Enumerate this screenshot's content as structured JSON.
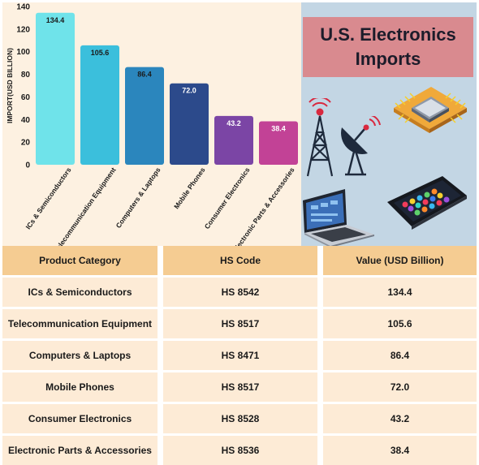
{
  "chart_data": {
    "type": "bar",
    "ylabel": "IMPORT(USD BILLION)",
    "ylim": [
      0,
      140
    ],
    "yticks": [
      0,
      20,
      40,
      60,
      80,
      100,
      120,
      140
    ],
    "categories": [
      "ICs & Semiconductors",
      "Telecommunication Equipment",
      "Computers & Laptops",
      "Mobile Phones",
      "Consumer Electronics",
      "Electronic Parts & Accessories"
    ],
    "values": [
      134.4,
      105.6,
      86.4,
      72.0,
      43.2,
      38.4
    ],
    "value_labels": [
      "134.4",
      "105.6",
      "86.4",
      "72.0",
      "43.2",
      "38.4"
    ],
    "bar_colors": [
      "#6fe3ea",
      "#3bbfdc",
      "#2b86bd",
      "#2c4a8b",
      "#7b45a5",
      "#c24296"
    ],
    "grid": false
  },
  "title": {
    "line1": "U.S. Electronics",
    "line2": "Imports"
  },
  "illustrations": [
    "antenna-tower-icon",
    "satellite-dish-icon",
    "microchip-icon",
    "laptop-icon",
    "smartphone-icon"
  ],
  "table": {
    "headers": [
      "Product Category",
      "HS Code",
      "Value (USD Billion)"
    ],
    "rows": [
      [
        "ICs & Semiconductors",
        "HS 8542",
        "134.4"
      ],
      [
        "Telecommunication Equipment",
        "HS 8517",
        "105.6"
      ],
      [
        "Computers & Laptops",
        "HS 8471",
        "86.4"
      ],
      [
        "Mobile Phones",
        "HS 8517",
        "72.0"
      ],
      [
        "Consumer Electronics",
        "HS 8528",
        "43.2"
      ],
      [
        "Electronic Parts & Accessories",
        "HS 8536",
        "38.4"
      ]
    ]
  },
  "colors": {
    "chart_bg": "#fdf1e1",
    "right_bg": "#c3d6e4",
    "title_bg": "#d98a8f",
    "table_header": "#f5cc92",
    "table_body": "#fdebd6"
  }
}
